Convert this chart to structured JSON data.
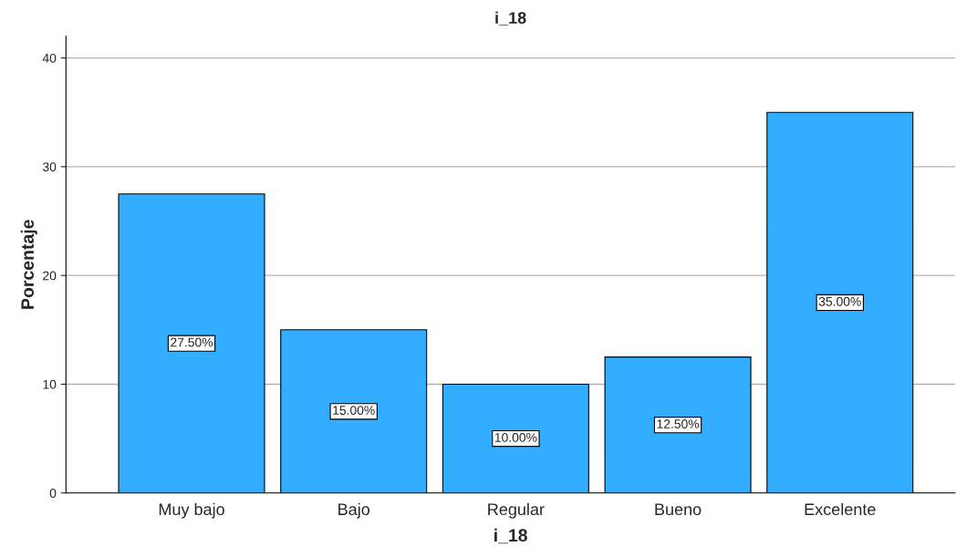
{
  "chart_data": {
    "type": "bar",
    "title": "i_18",
    "xlabel": "i_18",
    "ylabel": "Porcentaje",
    "categories": [
      "Muy bajo",
      "Bajo",
      "Regular",
      "Bueno",
      "Excelente"
    ],
    "values": [
      27.5,
      15,
      10,
      12.5,
      35
    ],
    "value_labels": [
      "27.50%",
      "15.00%",
      "10.00%",
      "12.50%",
      "35.00%"
    ],
    "color": "#33adff",
    "ylim": [
      0,
      42
    ],
    "yticks": [
      0,
      10,
      20,
      30,
      40
    ],
    "grid": "y",
    "legend": false
  }
}
